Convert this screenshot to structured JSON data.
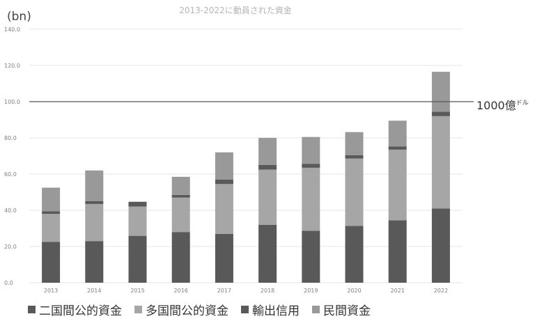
{
  "chart_data": {
    "type": "bar",
    "stacked": true,
    "title": "2013-2022に動員された資金",
    "unit_label": "(bn)",
    "categories": [
      "2013",
      "2014",
      "2015",
      "2016",
      "2017",
      "2018",
      "2019",
      "2020",
      "2021",
      "2022"
    ],
    "y_ticks": [
      "0.0",
      "20.0",
      "40.0",
      "60.0",
      "80.0",
      "100.0",
      "120.0",
      "140.0"
    ],
    "ylim": [
      0,
      140
    ],
    "grid": true,
    "legend_position": "bottom",
    "series": [
      {
        "name": "二国間公的資金",
        "color": "#595959",
        "values": [
          22.5,
          23.0,
          25.9,
          28.0,
          27.0,
          32.0,
          28.7,
          31.4,
          34.5,
          41.0
        ]
      },
      {
        "name": "多国間公的資金",
        "color": "#a6a6a6",
        "values": [
          15.5,
          20.5,
          16.2,
          19.0,
          27.5,
          30.5,
          34.8,
          37.2,
          39.0,
          51.0
        ]
      },
      {
        "name": "輸出信用",
        "color": "#595959",
        "values": [
          1.5,
          1.5,
          2.6,
          1.5,
          2.5,
          2.5,
          2.2,
          1.8,
          1.8,
          2.5
        ]
      },
      {
        "name": "民間資金",
        "color": "#999999",
        "values": [
          13.0,
          17.0,
          0.0,
          10.0,
          15.0,
          15.0,
          14.8,
          12.8,
          14.2,
          22.0
        ]
      }
    ],
    "reference_line": {
      "value": 100,
      "label": "1000億",
      "label_sup": "ドル"
    }
  }
}
